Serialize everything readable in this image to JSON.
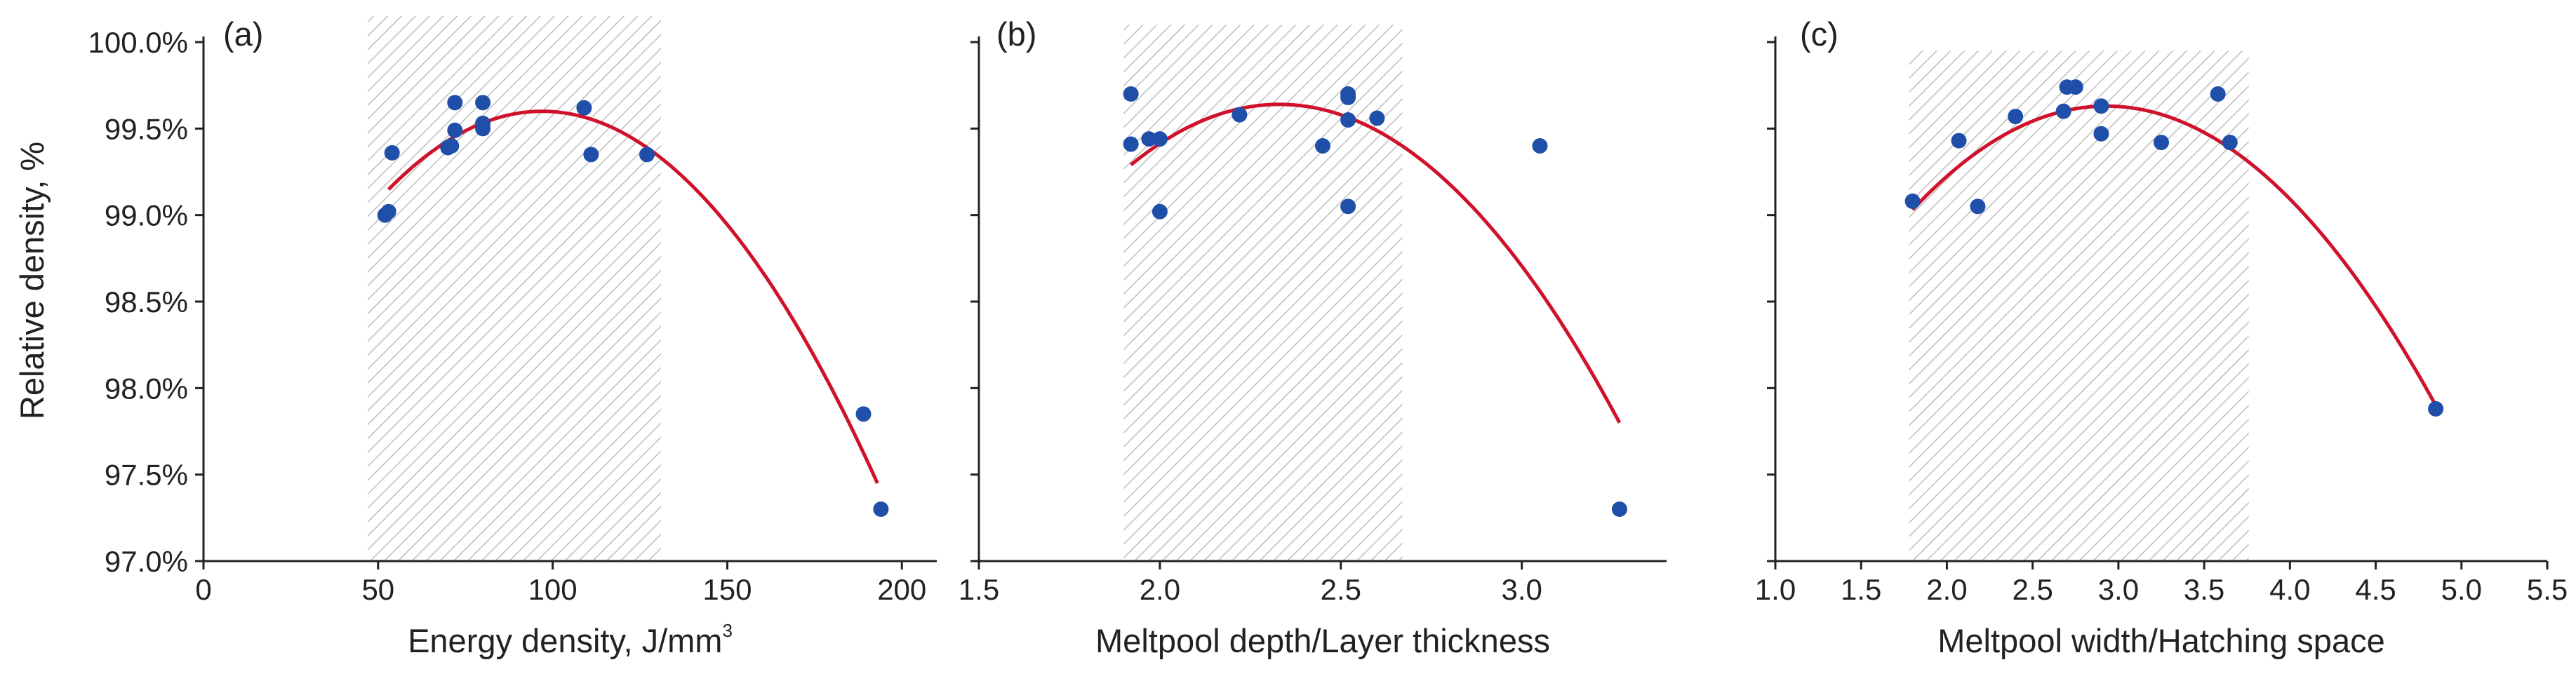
{
  "figure": {
    "ylabel": "Relative density, %",
    "yticks": [
      "97.0%",
      "97.5%",
      "98.0%",
      "98.5%",
      "99.0%",
      "99.5%",
      "100.0%"
    ],
    "colors": {
      "points": "#1f4fa8",
      "fit": "#d0112b",
      "shade": "#b8b8b8",
      "axis": "#222222"
    }
  },
  "chart_data": [
    {
      "type": "scatter",
      "panel_label": "(a)",
      "xlabel": "Energy density, J/mm",
      "xlabel_sup": "3",
      "xlim": [
        0,
        210
      ],
      "ylim": [
        97.0,
        100.0
      ],
      "xticks": [
        0,
        50,
        100,
        150,
        200
      ],
      "xtick_labels": [
        "0",
        "50",
        "100",
        "150",
        "200"
      ],
      "shaded_range": [
        47,
        131
      ],
      "shaded_top": 100.15,
      "points": [
        [
          52,
          99.0
        ],
        [
          53,
          99.02
        ],
        [
          54,
          99.36
        ],
        [
          70,
          99.39
        ],
        [
          71,
          99.4
        ],
        [
          72,
          99.49
        ],
        [
          72,
          99.65
        ],
        [
          80,
          99.5
        ],
        [
          80,
          99.53
        ],
        [
          80,
          99.65
        ],
        [
          109,
          99.62
        ],
        [
          111,
          99.35
        ],
        [
          127,
          99.35
        ],
        [
          189,
          97.85
        ],
        [
          194,
          97.3
        ]
      ],
      "fit": {
        "x_range": [
          53,
          193
        ],
        "vertex_x": 97,
        "vertex_y": 99.6,
        "end_y": 97.45
      }
    },
    {
      "type": "scatter",
      "panel_label": "(b)",
      "xlabel": "Meltpool depth/Layer thickness",
      "xlim": [
        1.5,
        3.4
      ],
      "ylim": [
        97.0,
        100.0
      ],
      "xticks": [
        1.5,
        2.0,
        2.5,
        3.0
      ],
      "xtick_labels": [
        "1.5",
        "2.0",
        "2.5",
        "3.0"
      ],
      "shaded_range": [
        1.9,
        2.67
      ],
      "shaded_top": 100.1,
      "points": [
        [
          1.92,
          99.7
        ],
        [
          1.92,
          99.41
        ],
        [
          1.97,
          99.44
        ],
        [
          2.0,
          99.44
        ],
        [
          2.0,
          99.02
        ],
        [
          2.22,
          99.58
        ],
        [
          2.45,
          99.4
        ],
        [
          2.52,
          99.05
        ],
        [
          2.52,
          99.55
        ],
        [
          2.52,
          99.68
        ],
        [
          2.52,
          99.7
        ],
        [
          2.6,
          99.56
        ],
        [
          3.05,
          99.4
        ],
        [
          3.27,
          97.3
        ]
      ],
      "fit": {
        "x_range": [
          1.92,
          3.27
        ],
        "vertex_x": 2.33,
        "vertex_y": 99.64,
        "end_y": 97.8
      }
    },
    {
      "type": "scatter",
      "panel_label": "(c)",
      "xlabel": "Meltpool width/Hatching space",
      "xlim": [
        1.0,
        5.5
      ],
      "ylim": [
        97.0,
        100.0
      ],
      "xticks": [
        1.0,
        1.5,
        2.0,
        2.5,
        3.0,
        3.5,
        4.0,
        4.5,
        5.0,
        5.5
      ],
      "xtick_labels": [
        "1.0",
        "1.5",
        "2.0",
        "2.5",
        "3.0",
        "3.5",
        "4.0",
        "4.5",
        "5.0",
        "5.5"
      ],
      "shaded_range": [
        1.78,
        3.76
      ],
      "shaded_top": 99.95,
      "points": [
        [
          1.8,
          99.08
        ],
        [
          2.07,
          99.43
        ],
        [
          2.18,
          99.05
        ],
        [
          2.4,
          99.57
        ],
        [
          2.68,
          99.6
        ],
        [
          2.7,
          99.74
        ],
        [
          2.75,
          99.74
        ],
        [
          2.9,
          99.47
        ],
        [
          2.9,
          99.63
        ],
        [
          3.25,
          99.42
        ],
        [
          3.58,
          99.7
        ],
        [
          3.65,
          99.42
        ],
        [
          4.85,
          97.88
        ]
      ],
      "fit": {
        "x_range": [
          1.8,
          4.85
        ],
        "vertex_x": 2.93,
        "vertex_y": 99.63,
        "end_y": 97.9
      }
    }
  ]
}
